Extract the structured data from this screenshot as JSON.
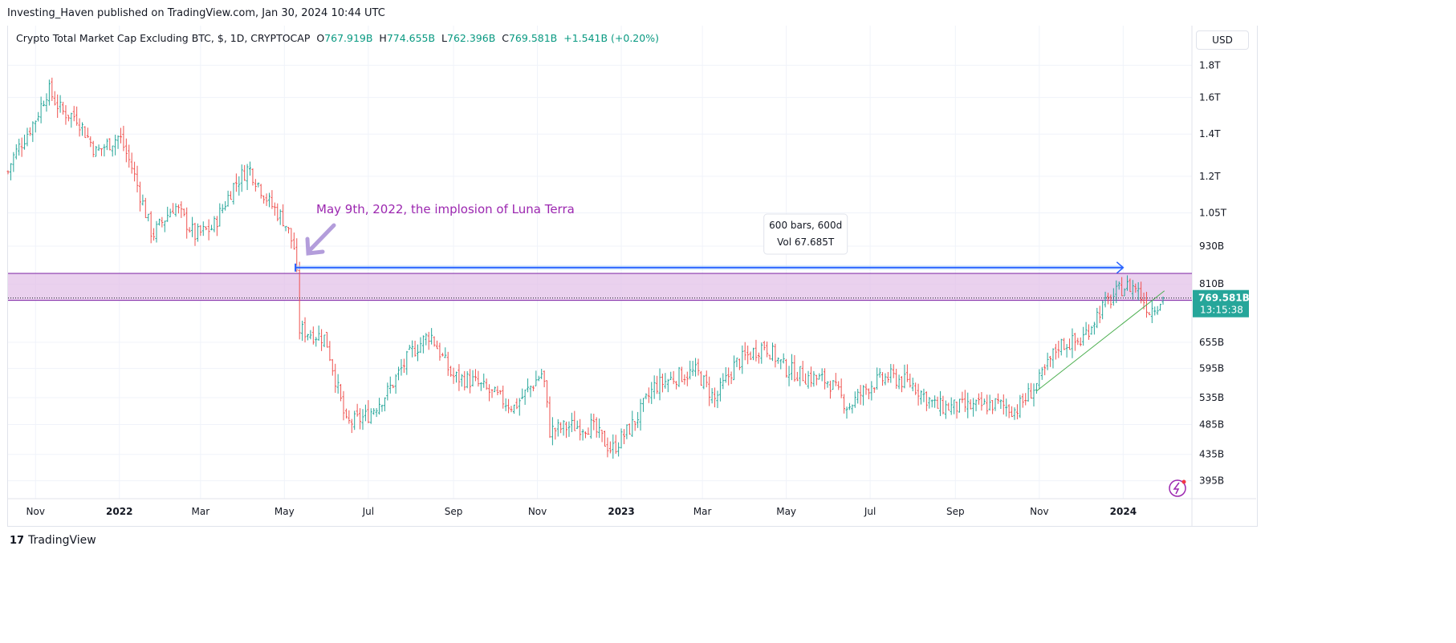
{
  "publisher": "Investing_Haven published on TradingView.com, Jan 30, 2024 10:44 UTC",
  "legend": {
    "symbol": "Crypto Total Market Cap Excluding BTC, $, 1D, CRYPTOCAP",
    "o_label": "O",
    "o": "767.919B",
    "h_label": "H",
    "h": "774.655B",
    "l_label": "L",
    "l": "762.396B",
    "c_label": "C",
    "c": "769.581B",
    "change": "+1.541B (+0.20%)"
  },
  "currency_button": "USD",
  "footer": {
    "brand": "TradingView",
    "logo_icon": "tradingview-logo-icon"
  },
  "colors": {
    "up": "#26a69a",
    "down": "#ef5350",
    "zone": "#e1bee7",
    "zone_border": "#7b1fa2",
    "arrow": "#2962ff",
    "annotation": "#9c27b0",
    "trendline": "#4caf50",
    "last_price": "#26a69a"
  },
  "chart_data": {
    "type": "ohlc",
    "title": "Crypto Total Market Cap Excluding BTC, $, 1D, CRYPTOCAP",
    "y_scale": "log",
    "ylim": [
      370000000000.0,
      1950000000000.0
    ],
    "grid": true,
    "y_ticks": [
      {
        "v": 1800000000000.0,
        "label": "1.8T"
      },
      {
        "v": 1600000000000.0,
        "label": "1.6T"
      },
      {
        "v": 1400000000000.0,
        "label": "1.4T"
      },
      {
        "v": 1200000000000.0,
        "label": "1.2T"
      },
      {
        "v": 1050000000000.0,
        "label": "1.05T"
      },
      {
        "v": 930000000000.0,
        "label": "930B"
      },
      {
        "v": 810000000000.0,
        "label": "810B"
      },
      {
        "v": 655000000000.0,
        "label": "655B"
      },
      {
        "v": 595000000000.0,
        "label": "595B"
      },
      {
        "v": 535000000000.0,
        "label": "535B"
      },
      {
        "v": 485000000000.0,
        "label": "485B"
      },
      {
        "v": 435000000000.0,
        "label": "435B"
      },
      {
        "v": 395000000000.0,
        "label": "395B"
      }
    ],
    "x_ticks": [
      {
        "d": "2021-11-01",
        "label": "Nov",
        "bold": false
      },
      {
        "d": "2022-01-01",
        "label": "2022",
        "bold": true
      },
      {
        "d": "2022-03-01",
        "label": "Mar",
        "bold": false
      },
      {
        "d": "2022-05-01",
        "label": "May",
        "bold": false
      },
      {
        "d": "2022-07-01",
        "label": "Jul",
        "bold": false
      },
      {
        "d": "2022-09-01",
        "label": "Sep",
        "bold": false
      },
      {
        "d": "2022-11-01",
        "label": "Nov",
        "bold": false
      },
      {
        "d": "2023-01-01",
        "label": "2023",
        "bold": true
      },
      {
        "d": "2023-03-01",
        "label": "Mar",
        "bold": false
      },
      {
        "d": "2023-05-01",
        "label": "May",
        "bold": false
      },
      {
        "d": "2023-07-01",
        "label": "Jul",
        "bold": false
      },
      {
        "d": "2023-09-01",
        "label": "Sep",
        "bold": false
      },
      {
        "d": "2023-11-01",
        "label": "Nov",
        "bold": false
      },
      {
        "d": "2024-01-01",
        "label": "2024",
        "bold": true
      }
    ],
    "x_range": [
      "2021-10-12",
      "2024-02-20"
    ],
    "approx_closes": [
      [
        "2021-10-12",
        1220000000000.0
      ],
      [
        "2021-10-15",
        1280000000000.0
      ],
      [
        "2021-11-01",
        1480000000000.0
      ],
      [
        "2021-11-10",
        1650000000000.0
      ],
      [
        "2021-11-20",
        1520000000000.0
      ],
      [
        "2021-12-01",
        1490000000000.0
      ],
      [
        "2021-12-15",
        1310000000000.0
      ],
      [
        "2022-01-01",
        1390000000000.0
      ],
      [
        "2022-01-10",
        1240000000000.0
      ],
      [
        "2022-01-25",
        967000000000.0
      ],
      [
        "2022-02-10",
        1080000000000.0
      ],
      [
        "2022-02-25",
        967000000000.0
      ],
      [
        "2022-03-10",
        995000000000.0
      ],
      [
        "2022-03-25",
        1160000000000.0
      ],
      [
        "2022-04-05",
        1240000000000.0
      ],
      [
        "2022-04-20",
        1090000000000.0
      ],
      [
        "2022-05-01",
        1020000000000.0
      ],
      [
        "2022-05-09",
        912000000000.0
      ],
      [
        "2022-05-12",
        686000000000.0
      ],
      [
        "2022-05-31",
        665000000000.0
      ],
      [
        "2022-06-15",
        485000000000.0
      ],
      [
        "2022-06-30",
        500000000000.0
      ],
      [
        "2022-07-15",
        546000000000.0
      ],
      [
        "2022-08-01",
        630000000000.0
      ],
      [
        "2022-08-15",
        676000000000.0
      ],
      [
        "2022-08-31",
        578000000000.0
      ],
      [
        "2022-09-15",
        568000000000.0
      ],
      [
        "2022-10-01",
        539000000000.0
      ],
      [
        "2022-10-15",
        517000000000.0
      ],
      [
        "2022-11-05",
        588000000000.0
      ],
      [
        "2022-11-10",
        474000000000.0
      ],
      [
        "2022-11-25",
        482000000000.0
      ],
      [
        "2022-12-10",
        482000000000.0
      ],
      [
        "2022-12-25",
        442000000000.0
      ],
      [
        "2023-01-10",
        487000000000.0
      ],
      [
        "2023-01-25",
        557000000000.0
      ],
      [
        "2023-02-10",
        578000000000.0
      ],
      [
        "2023-02-25",
        588000000000.0
      ],
      [
        "2023-03-10",
        531000000000.0
      ],
      [
        "2023-03-25",
        605000000000.0
      ],
      [
        "2023-04-15",
        649000000000.0
      ],
      [
        "2023-04-30",
        596000000000.0
      ],
      [
        "2023-05-15",
        578000000000.0
      ],
      [
        "2023-06-01",
        568000000000.0
      ],
      [
        "2023-06-15",
        517000000000.0
      ],
      [
        "2023-07-01",
        561000000000.0
      ],
      [
        "2023-07-15",
        578000000000.0
      ],
      [
        "2023-08-01",
        561000000000.0
      ],
      [
        "2023-08-18",
        517000000000.0
      ],
      [
        "2023-09-01",
        517000000000.0
      ],
      [
        "2023-09-15",
        517000000000.0
      ],
      [
        "2023-10-01",
        523000000000.0
      ],
      [
        "2023-10-15",
        511000000000.0
      ],
      [
        "2023-11-01",
        568000000000.0
      ],
      [
        "2023-11-15",
        649000000000.0
      ],
      [
        "2023-12-01",
        657000000000.0
      ],
      [
        "2023-12-15",
        736000000000.0
      ],
      [
        "2024-01-01",
        802000000000.0
      ],
      [
        "2024-01-10",
        802000000000.0
      ],
      [
        "2024-01-20",
        736000000000.0
      ],
      [
        "2024-01-30",
        769581000000.0
      ]
    ],
    "last_price": {
      "label": "769.581B",
      "countdown": "13:15:38",
      "value": 769581000000.0
    },
    "annotations": {
      "text": "May 9th, 2022, the implosion of Luna Terra",
      "zone": {
        "top": 842000000000.0,
        "bottom": 763000000000.0
      },
      "range": {
        "from": "2022-05-09",
        "to": "2024-01-01",
        "price": 860000000000.0,
        "line1": "600 bars, 600d",
        "line2": "Vol 67.685T"
      },
      "trendline": {
        "from": [
          "2023-10-30",
          548000000000.0
        ],
        "to": [
          "2024-01-31",
          790000000000.0
        ]
      }
    }
  }
}
